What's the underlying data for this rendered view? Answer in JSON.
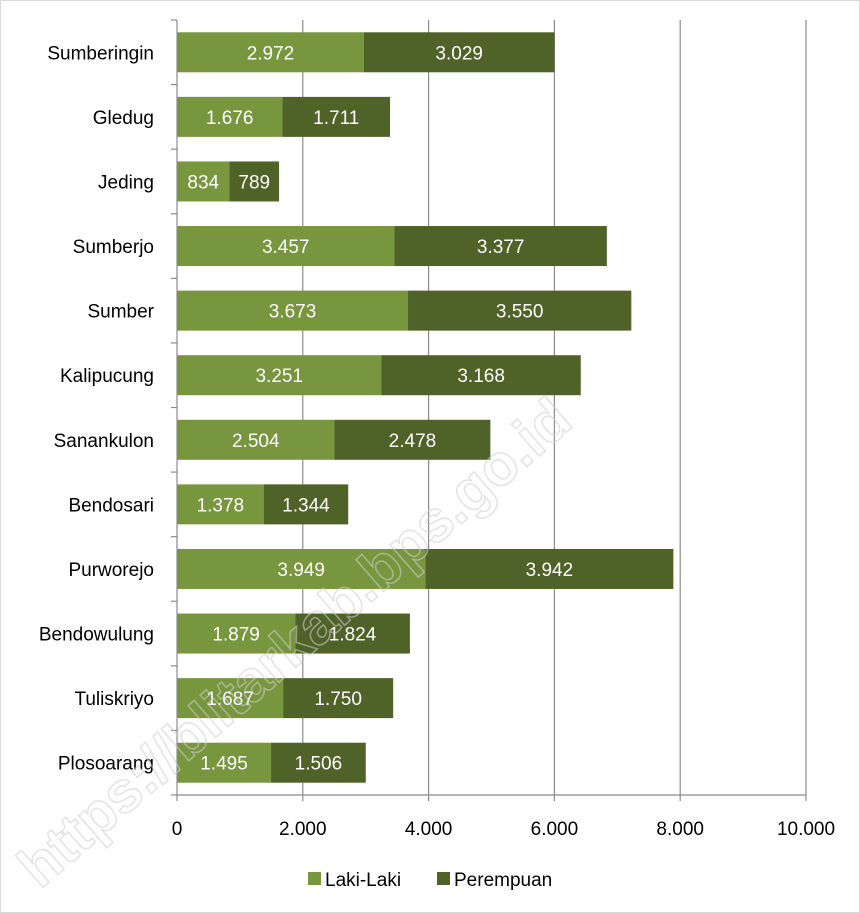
{
  "chart_data": {
    "type": "bar",
    "orientation": "horizontal",
    "stacked": true,
    "categories": [
      "Sumberingin",
      "Gledug",
      "Jeding",
      "Sumberjo",
      "Sumber",
      "Kalipucung",
      "Sanankulon",
      "Bendosari",
      "Purworejo",
      "Bendowulung",
      "Tuliskriyo",
      "Plosoarang"
    ],
    "series": [
      {
        "name": "Laki-Laki",
        "color": "#77963d",
        "values": [
          2972,
          1676,
          834,
          3457,
          3673,
          3251,
          2504,
          1378,
          3949,
          1879,
          1687,
          1495
        ],
        "labels": [
          "2.972",
          "1.676",
          "834",
          "3.457",
          "3.673",
          "3.251",
          "2.504",
          "1.378",
          "3.949",
          "1.879",
          "1.687",
          "1.495"
        ]
      },
      {
        "name": "Perempuan",
        "color": "#4f6228",
        "values": [
          3029,
          1711,
          789,
          3377,
          3550,
          3168,
          2478,
          1344,
          3942,
          1824,
          1750,
          1506
        ],
        "labels": [
          "3.029",
          "1.711",
          "789",
          "3.377",
          "3.550",
          "3.168",
          "2.478",
          "1.344",
          "3.942",
          "1.824",
          "1.750",
          "1.506"
        ]
      }
    ],
    "xlim": [
      0,
      10000
    ],
    "ticks": [
      0,
      2000,
      4000,
      6000,
      8000,
      10000
    ],
    "tick_labels": [
      "0",
      "2.000",
      "4.000",
      "6.000",
      "8.000",
      "10.000"
    ],
    "grid": "vertical",
    "legend": "bottom",
    "title": "",
    "xlabel": "",
    "ylabel": ""
  },
  "watermark": "https://blitarkab.bps.go.id"
}
